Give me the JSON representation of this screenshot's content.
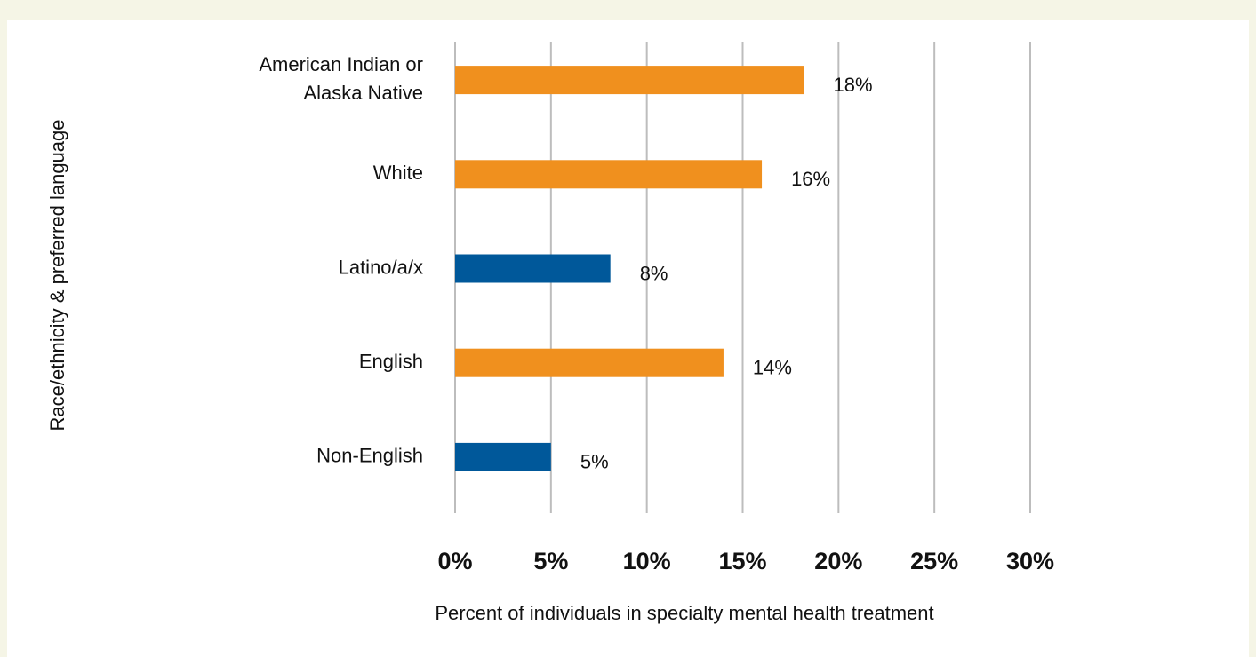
{
  "chart_data": {
    "type": "barh",
    "categories": [
      "American Indian or\nAlaska Native",
      "White",
      "Latino/a/x",
      "English",
      "Non-English"
    ],
    "values": [
      18.2,
      16,
      8.1,
      14,
      5
    ],
    "value_labels": [
      "18%",
      "16%",
      "8%",
      "14%",
      "5%"
    ],
    "colors": [
      "#f0901e",
      "#f0901e",
      "#00589a",
      "#f0901e",
      "#00589a"
    ],
    "xlim": [
      0,
      30
    ],
    "xticks": [
      {
        "value": 0,
        "label": "0%"
      },
      {
        "value": 5,
        "label": "5%"
      },
      {
        "value": 10,
        "label": "10%"
      },
      {
        "value": 15,
        "label": "15%"
      },
      {
        "value": 20,
        "label": "20%"
      },
      {
        "value": 25,
        "label": "25%"
      },
      {
        "value": 30,
        "label": "30%"
      }
    ],
    "grid": true,
    "xlabel": "Percent of individuals in specialty mental health treatment",
    "ylabel": "Race/ethnicity & preferred language"
  }
}
